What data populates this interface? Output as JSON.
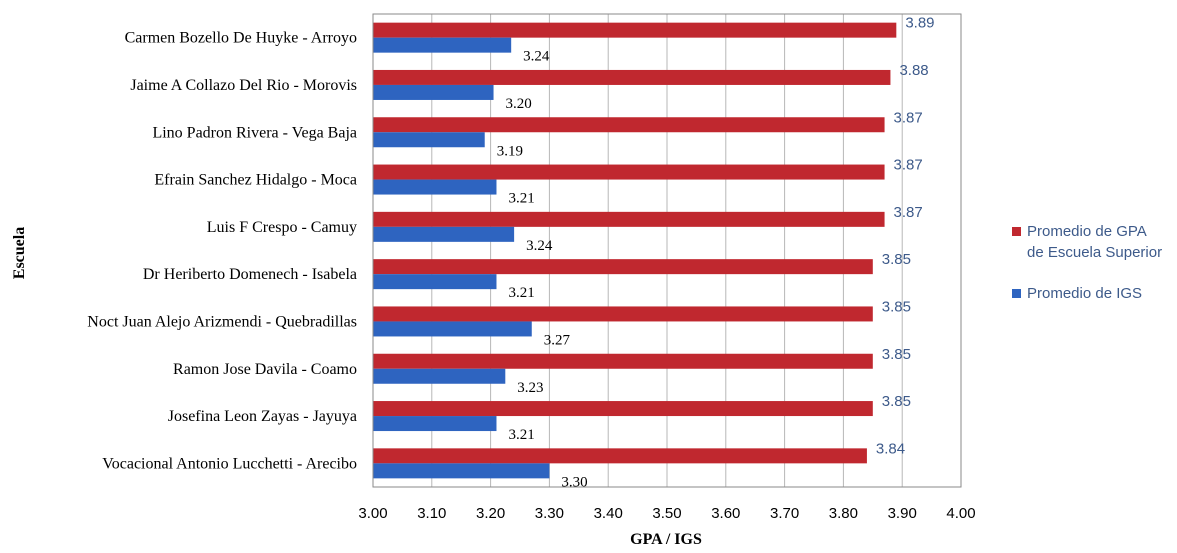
{
  "chart_data": {
    "type": "bar",
    "orientation": "horizontal",
    "categories": [
      "Carmen Bozello De Huyke - Arroyo",
      "Jaime A Collazo Del Rio - Morovis",
      "Lino Padron Rivera - Vega Baja",
      "Efrain Sanchez Hidalgo - Moca",
      "Luis F Crespo - Camuy",
      "Dr Heriberto Domenech - Isabela",
      "Noct Juan Alejo Arizmendi - Quebradillas",
      "Ramon Jose Davila - Coamo",
      "Josefina Leon Zayas - Jayuya",
      "Vocacional Antonio Lucchetti - Arecibo"
    ],
    "series": [
      {
        "name": "Promedio de GPA de Escuela Superior",
        "legend_lines": [
          "Promedio de GPA",
          "de Escuela Superior"
        ],
        "color": "#c0282f",
        "label_color": "#3d5a8a",
        "values": [
          3.89,
          3.88,
          3.87,
          3.87,
          3.87,
          3.85,
          3.85,
          3.85,
          3.85,
          3.84
        ],
        "labels": [
          "3.89",
          "3.88",
          "3.87",
          "3.87",
          "3.87",
          "3.85",
          "3.85",
          "3.85",
          "3.85",
          "3.84"
        ]
      },
      {
        "name": "Promedio de IGS",
        "legend_lines": [
          "Promedio de IGS"
        ],
        "color": "#2e64c0",
        "label_color": "#000000",
        "values": [
          3.235,
          3.205,
          3.19,
          3.21,
          3.24,
          3.21,
          3.27,
          3.225,
          3.21,
          3.3
        ],
        "labels": [
          "3.24",
          "3.20",
          "3.19",
          "3.21",
          "3.24",
          "3.21",
          "3.27",
          "3.23",
          "3.21",
          "3.30"
        ]
      }
    ],
    "xlabel": "GPA / IGS",
    "ylabel": "Escuela",
    "xlim": [
      3.0,
      4.0
    ],
    "xticks": [
      3.0,
      3.1,
      3.2,
      3.3,
      3.4,
      3.5,
      3.6,
      3.7,
      3.8,
      3.9,
      4.0
    ],
    "xtick_labels": [
      "3.00",
      "3.10",
      "3.20",
      "3.30",
      "3.40",
      "3.50",
      "3.60",
      "3.70",
      "3.80",
      "3.90",
      "4.00"
    ],
    "grid": true,
    "legend_position": "right"
  }
}
